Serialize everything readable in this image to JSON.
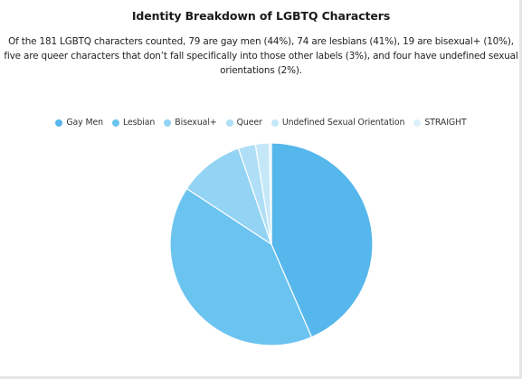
{
  "chart_data": {
    "type": "pie",
    "title": "Identity Breakdown of LGBTQ Characters",
    "subtitle": "Of the 181 LGBTQ characters counted, 79 are gay men (44%), 74 are lesbians (41%), 19 are bisexual+ (10%), five are queer characters that don’t fall specifically into those other labels (3%), and four have undefined sexual orientations (2%).",
    "legend_position": "top",
    "slices": [
      {
        "label": "Gay Men",
        "value": 79,
        "color": "#56b7ec"
      },
      {
        "label": "Lesbian",
        "value": 74,
        "color": "#6bc3f0"
      },
      {
        "label": "Bisexual+",
        "value": 19,
        "color": "#93d3f3"
      },
      {
        "label": "Queer",
        "value": 5,
        "color": "#aedff6"
      },
      {
        "label": "Undefined Sexual Orientation",
        "value": 4,
        "color": "#c5e8f9"
      },
      {
        "label": "STRAIGHT",
        "value": 0.6,
        "color": "#dcf1fb"
      }
    ]
  }
}
